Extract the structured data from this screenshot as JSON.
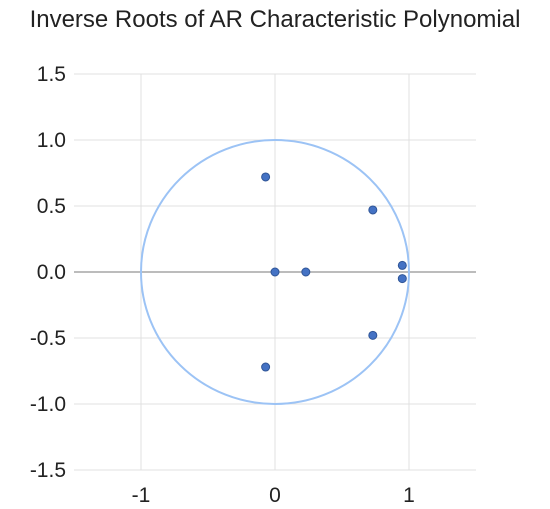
{
  "chart_data": {
    "type": "scatter",
    "title": "Inverse Roots of AR Characteristic Polynomial",
    "xlabel": "",
    "ylabel": "",
    "xlim": [
      -1.5,
      1.5
    ],
    "ylim": [
      -1.5,
      1.5
    ],
    "x_ticks": [
      -1,
      0,
      1
    ],
    "x_tick_labels": [
      "-1",
      "0",
      "1"
    ],
    "y_ticks": [
      1.5,
      1.0,
      0.5,
      0.0,
      -0.5,
      -1.0,
      -1.5
    ],
    "y_tick_labels": [
      "1.5",
      "1.0",
      "0.5",
      "0.0",
      "-0.5",
      "-1.0",
      "-1.5"
    ],
    "grid": true,
    "unit_circle": {
      "radius": 1,
      "color": "#9cc3f5"
    },
    "points": [
      {
        "x": -0.07,
        "y": 0.72
      },
      {
        "x": 0.73,
        "y": 0.47
      },
      {
        "x": 0.0,
        "y": 0.0
      },
      {
        "x": 0.23,
        "y": 0.0
      },
      {
        "x": 0.95,
        "y": 0.05
      },
      {
        "x": 0.95,
        "y": -0.05
      },
      {
        "x": 0.73,
        "y": -0.48
      },
      {
        "x": -0.07,
        "y": -0.72
      }
    ],
    "point_color": "#4472c4",
    "point_edge_color": "#2f5597",
    "gridline_color": "#e0e0e0",
    "zero_line_color": "#a6a6a6"
  }
}
